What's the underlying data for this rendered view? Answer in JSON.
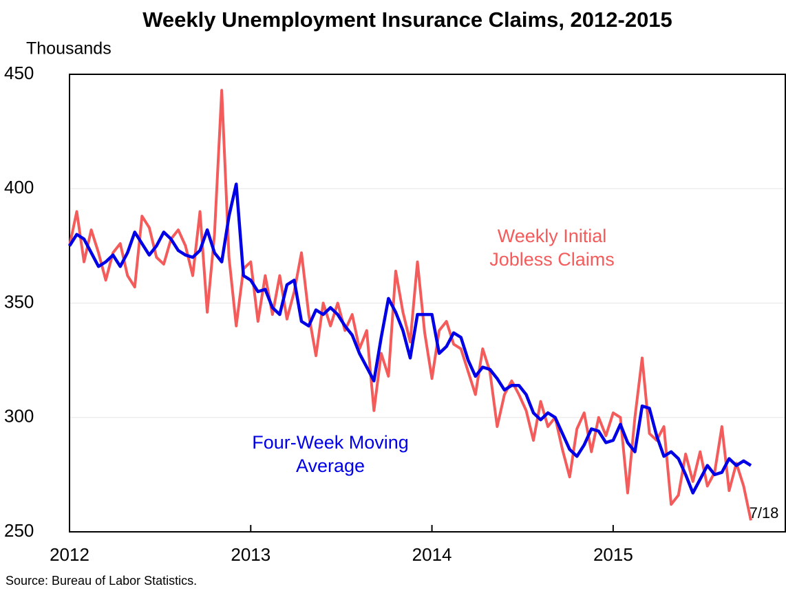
{
  "chart_data": {
    "type": "line",
    "title": "Weekly Unemployment Insurance Claims, 2012-2015",
    "y_axis_label": "Thousands",
    "source": "Source: Bureau of Labor Statistics.",
    "end_label": "7/18",
    "x": [
      2012.0,
      2012.04,
      2012.08,
      2012.12,
      2012.16,
      2012.2,
      2012.24,
      2012.28,
      2012.32,
      2012.36,
      2012.4,
      2012.44,
      2012.48,
      2012.52,
      2012.56,
      2012.6,
      2012.64,
      2012.68,
      2012.72,
      2012.76,
      2012.8,
      2012.84,
      2012.88,
      2012.92,
      2012.96,
      2013.0,
      2013.04,
      2013.08,
      2013.12,
      2013.16,
      2013.2,
      2013.24,
      2013.28,
      2013.32,
      2013.36,
      2013.4,
      2013.44,
      2013.48,
      2013.52,
      2013.56,
      2013.6,
      2013.64,
      2013.68,
      2013.72,
      2013.76,
      2013.8,
      2013.84,
      2013.88,
      2013.92,
      2013.96,
      2014.0,
      2014.04,
      2014.08,
      2014.12,
      2014.16,
      2014.2,
      2014.24,
      2014.28,
      2014.32,
      2014.36,
      2014.4,
      2014.44,
      2014.48,
      2014.52,
      2014.56,
      2014.6,
      2014.64,
      2014.68,
      2014.72,
      2014.76,
      2014.8,
      2014.84,
      2014.88,
      2014.92,
      2014.96,
      2015.0,
      2015.04,
      2015.08,
      2015.12,
      2015.16,
      2015.2,
      2015.24,
      2015.28,
      2015.32,
      2015.36,
      2015.4,
      2015.44,
      2015.48,
      2015.52,
      2015.56,
      2015.6,
      2015.64,
      2015.68,
      2015.72,
      2015.76
    ],
    "series": [
      {
        "name": "Weekly Initial Jobless Claims",
        "color": "#f45b5b",
        "width": 4,
        "values": [
          375,
          390,
          368,
          382,
          372,
          360,
          372,
          376,
          362,
          357,
          388,
          383,
          370,
          367,
          378,
          382,
          375,
          362,
          390,
          346,
          380,
          443,
          370,
          340,
          365,
          368,
          342,
          362,
          345,
          362,
          343,
          355,
          372,
          345,
          327,
          350,
          340,
          350,
          338,
          345,
          330,
          338,
          303,
          328,
          318,
          364,
          346,
          333,
          368,
          337,
          317,
          338,
          342,
          332,
          330,
          320,
          310,
          330,
          320,
          296,
          310,
          316,
          310,
          303,
          290,
          307,
          296,
          300,
          286,
          274,
          295,
          302,
          285,
          300,
          292,
          302,
          300,
          267,
          300,
          326,
          293,
          290,
          296,
          262,
          266,
          284,
          272,
          285,
          270,
          276,
          296,
          268,
          280,
          270,
          255
        ]
      },
      {
        "name": "Four-Week Moving Average",
        "color": "#0000e6",
        "width": 4.5,
        "values": [
          375,
          380,
          378,
          372,
          366,
          368,
          371,
          366,
          372,
          381,
          376,
          371,
          375,
          381,
          378,
          373,
          371,
          370,
          373,
          382,
          372,
          368,
          388,
          402,
          362,
          360,
          355,
          356,
          348,
          345,
          358,
          360,
          342,
          340,
          347,
          345,
          348,
          345,
          340,
          336,
          328,
          322,
          316,
          335,
          352,
          346,
          338,
          326,
          345,
          345,
          345,
          328,
          331,
          337,
          335,
          325,
          318,
          322,
          321,
          317,
          312,
          314,
          314,
          310,
          302,
          299,
          302,
          300,
          293,
          286,
          283,
          288,
          295,
          294,
          289,
          290,
          297,
          289,
          285,
          305,
          304,
          292,
          283,
          285,
          282,
          275,
          267,
          273,
          279,
          275,
          276,
          282,
          279,
          281,
          279
        ]
      }
    ],
    "xlim": [
      2012,
      2015.95
    ],
    "xticks": [
      2012,
      2013,
      2014,
      2015
    ],
    "ylim": [
      250,
      450
    ],
    "yticks": [
      250,
      300,
      350,
      400,
      450
    ],
    "grid": true
  }
}
